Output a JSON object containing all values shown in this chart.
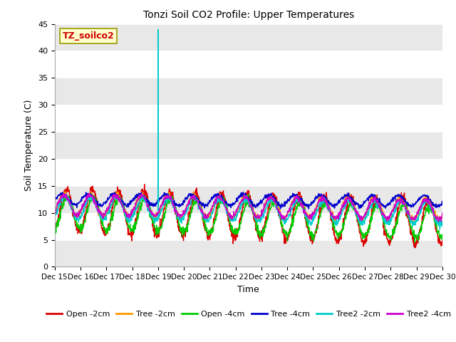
{
  "title": "Tonzi Soil CO2 Profile: Upper Temperatures",
  "xlabel": "Time",
  "ylabel": "Soil Temperature (C)",
  "ylim": [
    0,
    45
  ],
  "xlim": [
    0,
    15
  ],
  "fig_bg_color": "#ffffff",
  "plot_bg_color": "#ffffff",
  "watermark_text": "TZ_soilco2",
  "x_tick_labels": [
    "Dec 15",
    "Dec 16",
    "Dec 17",
    "Dec 18",
    "Dec 19",
    "Dec 20",
    "Dec 21",
    "Dec 22",
    "Dec 23",
    "Dec 24",
    "Dec 25",
    "Dec 26",
    "Dec 27",
    "Dec 28",
    "Dec 29",
    "Dec 30"
  ],
  "yticks": [
    0,
    5,
    10,
    15,
    20,
    25,
    30,
    35,
    40,
    45
  ],
  "band_color": "#e8e8e8",
  "spike_x_day": 4,
  "spike_y": 44.0,
  "series_colors": {
    "Open -2cm": "#dd0000",
    "Tree -2cm": "#ff9900",
    "Open -4cm": "#00cc00",
    "Tree -4cm": "#0000cc",
    "Tree2 -2cm": "#00cccc",
    "Tree2 -4cm": "#cc00cc"
  }
}
